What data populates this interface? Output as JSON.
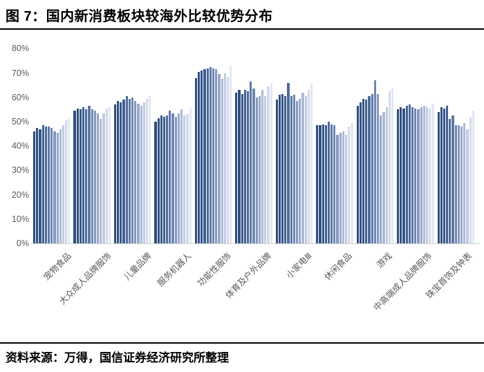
{
  "title": "图 7：国内新消费板块较海外比较优势分布",
  "source": "资料来源：万得，国信证券经济研究所整理",
  "colors": {
    "title_text": "#000000",
    "axis_label": "#595959",
    "baseline": "#d2d2d2",
    "divider": "#000000"
  },
  "chart_data": {
    "type": "bar",
    "title": "国内新消费板块较海外比较优势分布",
    "xlabel": "",
    "ylabel": "",
    "unit": "%",
    "ylim": [
      0,
      80
    ],
    "grid": false,
    "legend": "none",
    "y_ticks": [
      "0%",
      "10%",
      "20%",
      "30%",
      "40%",
      "50%",
      "60%",
      "70%",
      "80%"
    ],
    "bars_per_group": 13,
    "bar_colors": [
      "#2E4C7D",
      "#2F507F",
      "#36568A",
      "#41608F",
      "#4D6B9B",
      "#5C78A6",
      "#6E88B1",
      "#8298BE",
      "#97A9CA",
      "#ACBAD6",
      "#C1CBE1",
      "#D3DAEB",
      "#E2E7F4"
    ],
    "categories": [
      "宠物食品",
      "大众成人品牌服饰",
      "儿童品牌",
      "服务机器人",
      "功能性服饰",
      "体育及户外品牌",
      "小家电Ⅲ",
      "休闲食品",
      "游戏",
      "中高端成人品牌服饰",
      "珠宝首饰及钟表"
    ],
    "groups": [
      {
        "category": "宠物食品",
        "values": [
          46,
          47.5,
          47,
          48.5,
          48,
          48,
          47.5,
          46,
          45.5,
          47,
          48.5,
          50.5,
          51.5
        ]
      },
      {
        "category": "大众成人品牌服饰",
        "values": [
          54.5,
          55.5,
          55,
          56,
          55,
          56.5,
          55,
          54.5,
          53.5,
          51,
          53.5,
          55.5,
          56
        ]
      },
      {
        "category": "儿童品牌",
        "values": [
          57,
          58.5,
          58,
          59,
          60.5,
          59.5,
          60,
          58.5,
          57.5,
          56.5,
          58,
          59.5,
          60.5
        ]
      },
      {
        "category": "服务机器人",
        "values": [
          50,
          51.5,
          52.5,
          52,
          52.5,
          54.5,
          53.5,
          52,
          53.5,
          55,
          52.5,
          53,
          55.5
        ]
      },
      {
        "category": "功能性服饰",
        "values": [
          68,
          70.5,
          71,
          71.5,
          72,
          72.5,
          72,
          71.5,
          69.5,
          67.5,
          70,
          68.5,
          73
        ]
      },
      {
        "category": "体育及户外品牌",
        "values": [
          62,
          63,
          61.5,
          63,
          62.5,
          66.5,
          63.5,
          60,
          60.5,
          63,
          60.5,
          64.5,
          66
        ]
      },
      {
        "category": "小家电Ⅲ",
        "values": [
          59,
          61,
          61.5,
          60.5,
          66,
          60.5,
          61,
          58.5,
          59.5,
          62,
          60.5,
          63,
          65.5
        ]
      },
      {
        "category": "休闲食品",
        "values": [
          48.5,
          48.5,
          49,
          48.5,
          50,
          49,
          48.5,
          44.5,
          45.5,
          46,
          44.5,
          48,
          49.5
        ]
      },
      {
        "category": "游戏",
        "values": [
          56.5,
          58,
          59.5,
          59,
          60.5,
          61.5,
          67,
          61.5,
          52.5,
          54,
          56,
          62.5,
          63.5
        ]
      },
      {
        "category": "中高端成人品牌服饰",
        "values": [
          55,
          56,
          55.5,
          56.5,
          57,
          56,
          55.5,
          55,
          56,
          56.5,
          56,
          55.5,
          57.5
        ]
      },
      {
        "category": "珠宝首饰及钟表",
        "values": [
          54,
          56,
          55.5,
          56.5,
          51,
          52.5,
          48.5,
          48.5,
          48,
          49.5,
          47,
          52,
          54.5
        ]
      }
    ]
  }
}
